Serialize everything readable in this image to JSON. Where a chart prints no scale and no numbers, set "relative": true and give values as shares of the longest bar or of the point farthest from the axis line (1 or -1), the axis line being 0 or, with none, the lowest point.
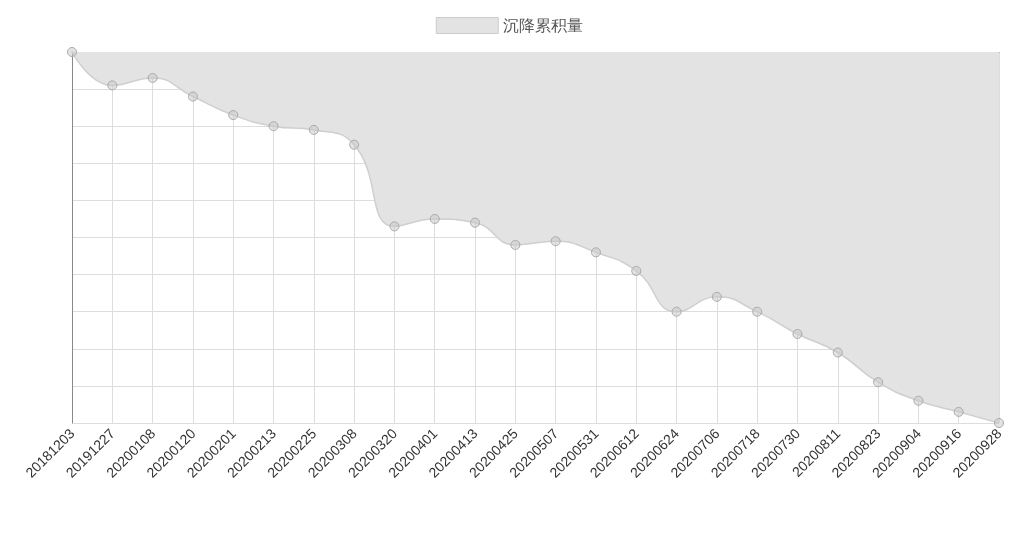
{
  "chart_data": {
    "type": "area",
    "relative": true,
    "categories": [
      "20181203",
      "20191227",
      "20200108",
      "20200120",
      "20200201",
      "20200213",
      "20200225",
      "20200308",
      "20200320",
      "20200401",
      "20200413",
      "20200425",
      "20200507",
      "20200531",
      "20200612",
      "20200624",
      "20200706",
      "20200718",
      "20200730",
      "20200811",
      "20200823",
      "20200904",
      "20200916",
      "20200928"
    ],
    "series": [
      {
        "name": "沉降累积量",
        "color": "#e3e3e3",
        "values": [
          0,
          -0.09,
          -0.07,
          -0.12,
          -0.17,
          -0.2,
          -0.21,
          -0.25,
          -0.47,
          -0.45,
          -0.46,
          -0.52,
          -0.51,
          -0.54,
          -0.59,
          -0.7,
          -0.66,
          -0.7,
          -0.76,
          -0.81,
          -0.89,
          -0.94,
          -0.97,
          -1
        ]
      }
    ],
    "legend": "top",
    "grid": true,
    "marker": "circle"
  }
}
